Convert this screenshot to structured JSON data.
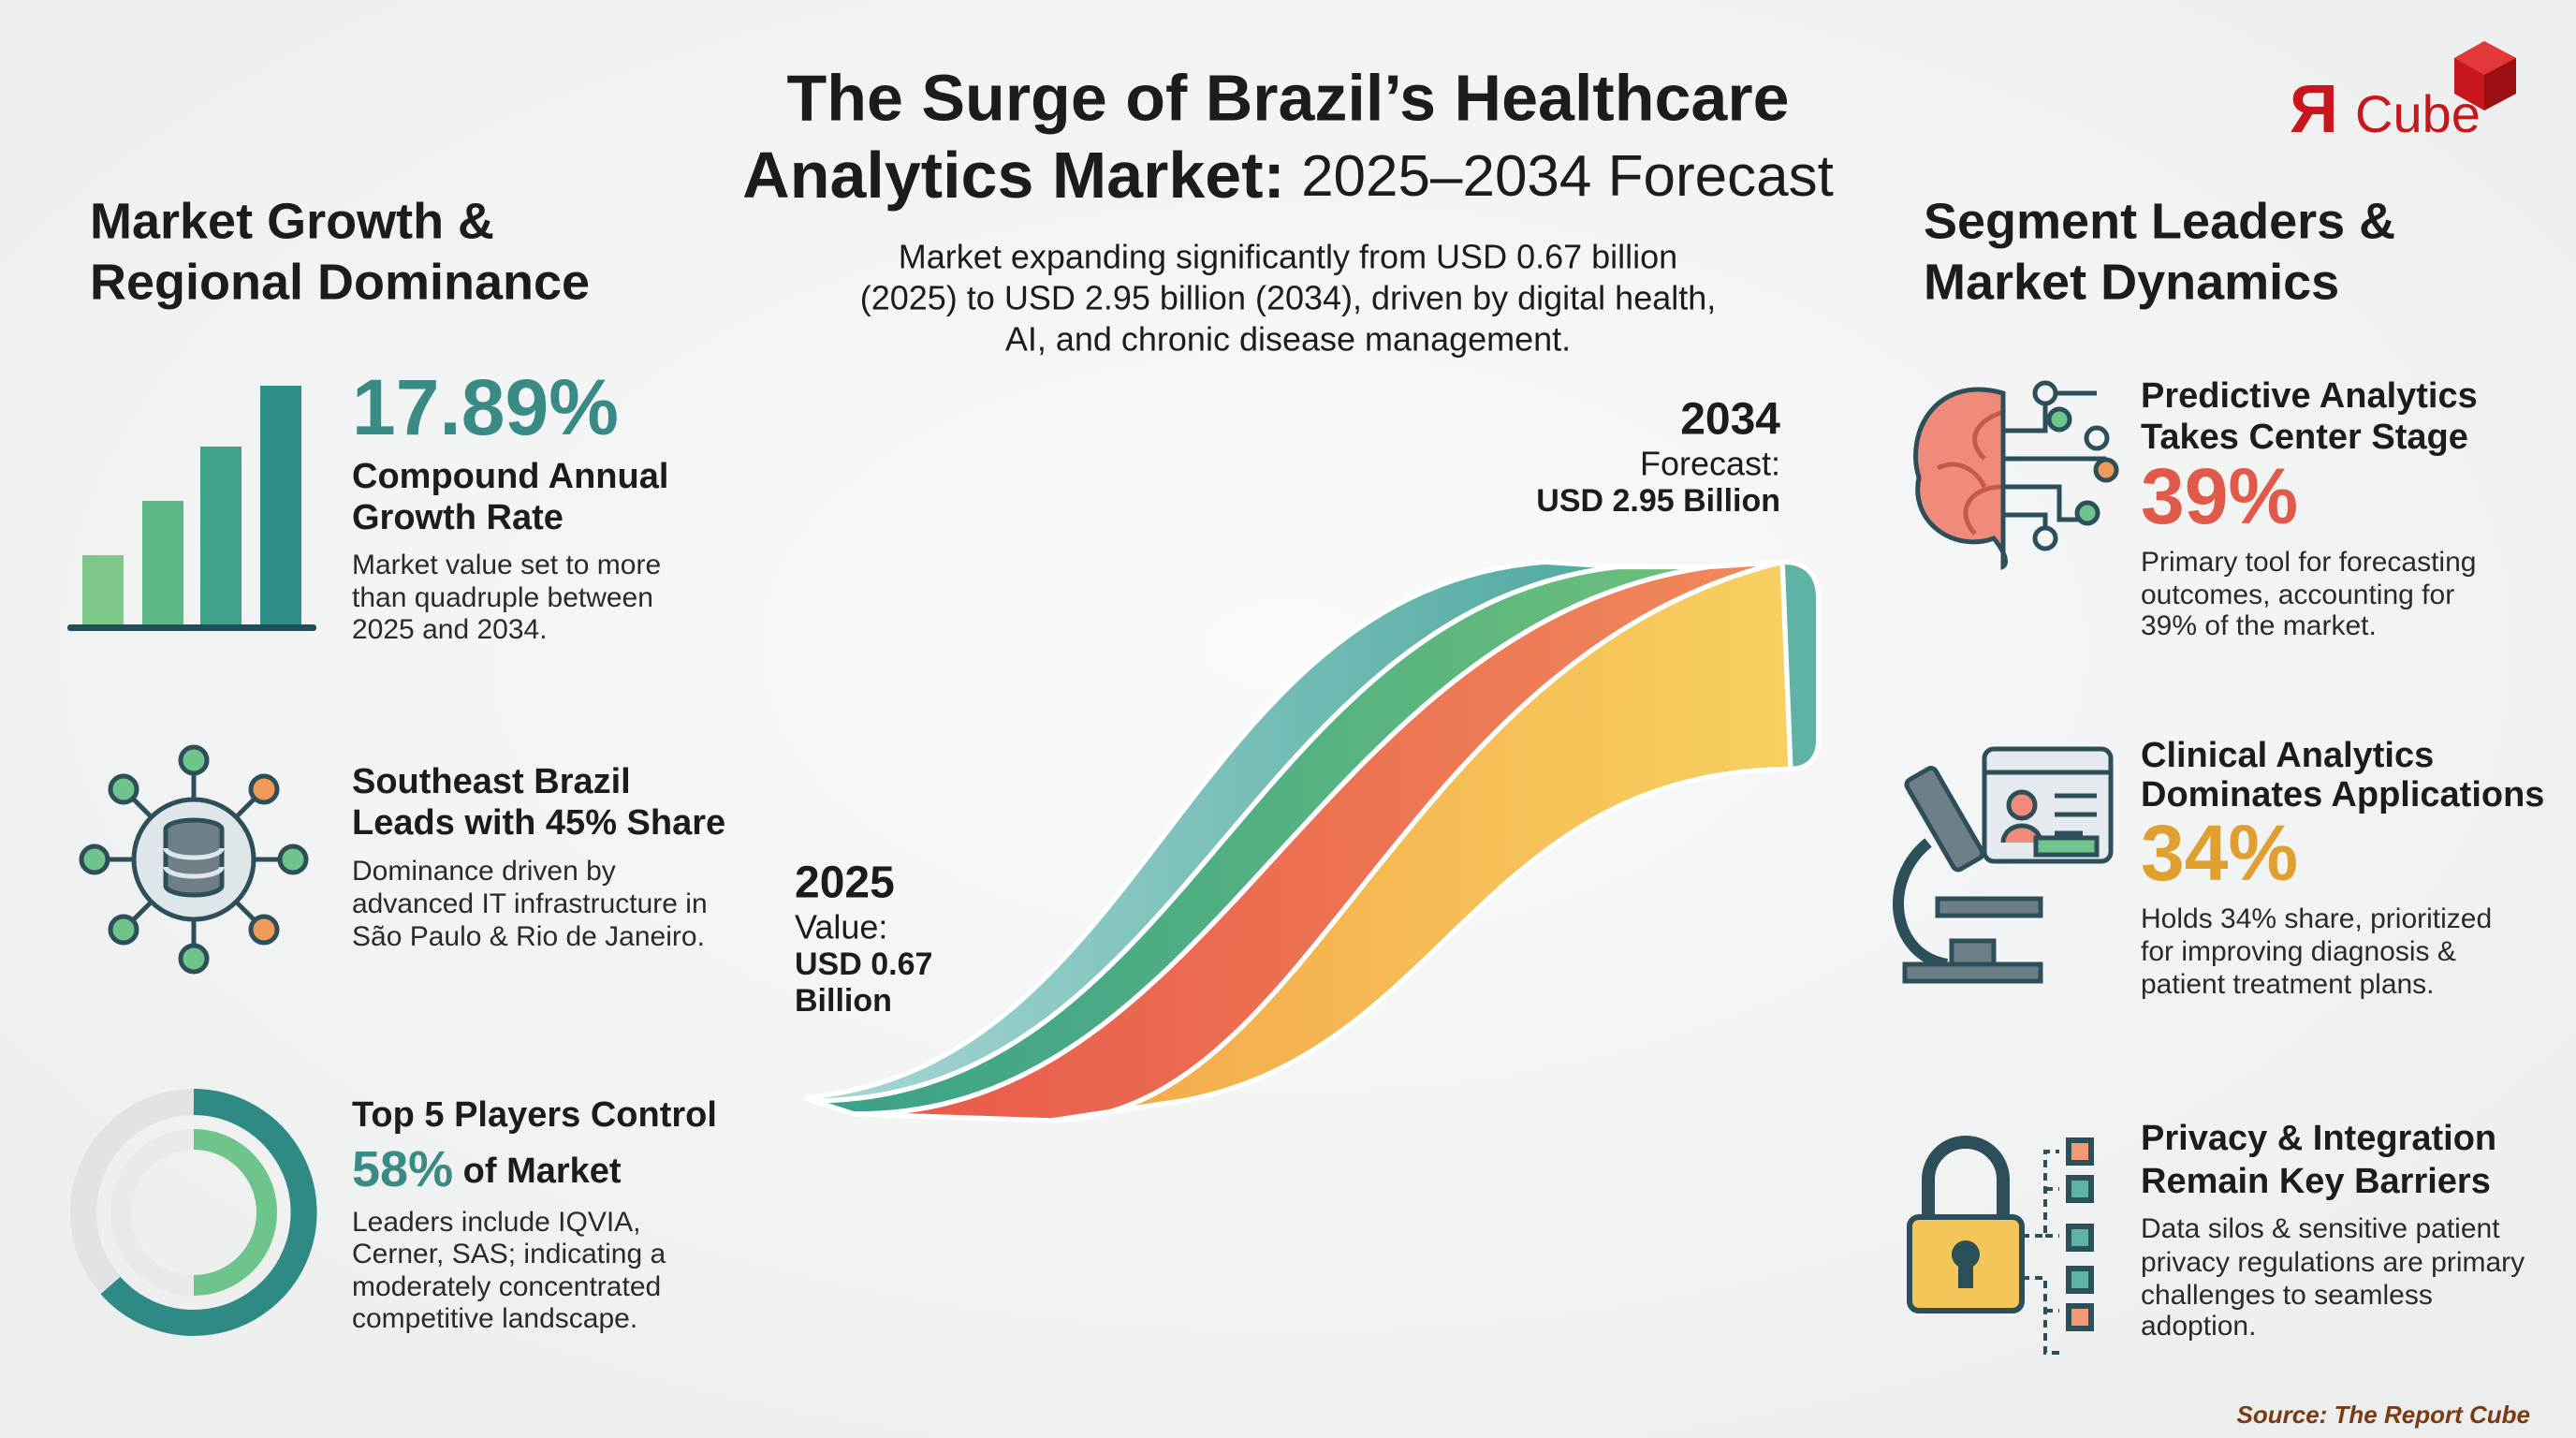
{
  "header": {
    "title_line1": "The Surge of Brazil’s Healthcare",
    "title_line2_bold": "Analytics Market:",
    "title_line2_regular": "2025–2034 Forecast",
    "subtitle": [
      "Market expanding significantly from USD 0.67 billion",
      "(2025) to USD 2.95 billion (2034), driven by digital health,",
      "AI, and chronic disease management."
    ]
  },
  "logo": {
    "mark": "Я",
    "text": "Cube"
  },
  "left": {
    "heading": [
      "Market Growth &",
      "Regional Dominance"
    ],
    "items": [
      {
        "stat": "17.89%",
        "title": [
          "Compound Annual",
          "Growth Rate"
        ],
        "desc": [
          "Market value set to more",
          "than quadruple between",
          "2025 and 2034."
        ]
      },
      {
        "title": [
          "Southeast Brazil",
          "Leads with 45% Share"
        ],
        "desc": [
          "Dominance driven by",
          "advanced IT infrastructure in",
          "São Paulo & Rio de Janeiro."
        ]
      },
      {
        "title": [
          "Top 5 Players Control"
        ],
        "stat": "58%",
        "stat_suffix": "of Market",
        "desc": [
          "Leaders include IQVIA,",
          "Cerner, SAS; indicating a",
          "moderately concentrated",
          "competitive landscape."
        ]
      }
    ]
  },
  "center": {
    "end": [
      "2034",
      "Forecast:",
      "USD 2.95 Billion"
    ],
    "start": [
      "2025",
      "Value:",
      "USD 0.67",
      "Billion"
    ]
  },
  "right": {
    "heading": [
      "Segment Leaders &",
      "Market Dynamics"
    ],
    "items": [
      {
        "title": [
          "Predictive Analytics",
          "Takes Center Stage"
        ],
        "stat": "39%",
        "desc": [
          "Primary tool for forecasting",
          "outcomes, accounting for",
          "39% of the market."
        ]
      },
      {
        "title": [
          "Clinical Analytics",
          "Dominates Applications"
        ],
        "stat": "34%",
        "desc": [
          "Holds 34% share, prioritized",
          "for improving diagnosis &",
          "patient treatment plans."
        ]
      },
      {
        "title": [
          "Privacy & Integration",
          "Remain Key Barriers"
        ],
        "desc": [
          "Data silos & sensitive patient",
          "privacy regulations are primary",
          "challenges to seamless",
          "adoption."
        ]
      }
    ]
  },
  "source": "Source: The Report Cube"
}
